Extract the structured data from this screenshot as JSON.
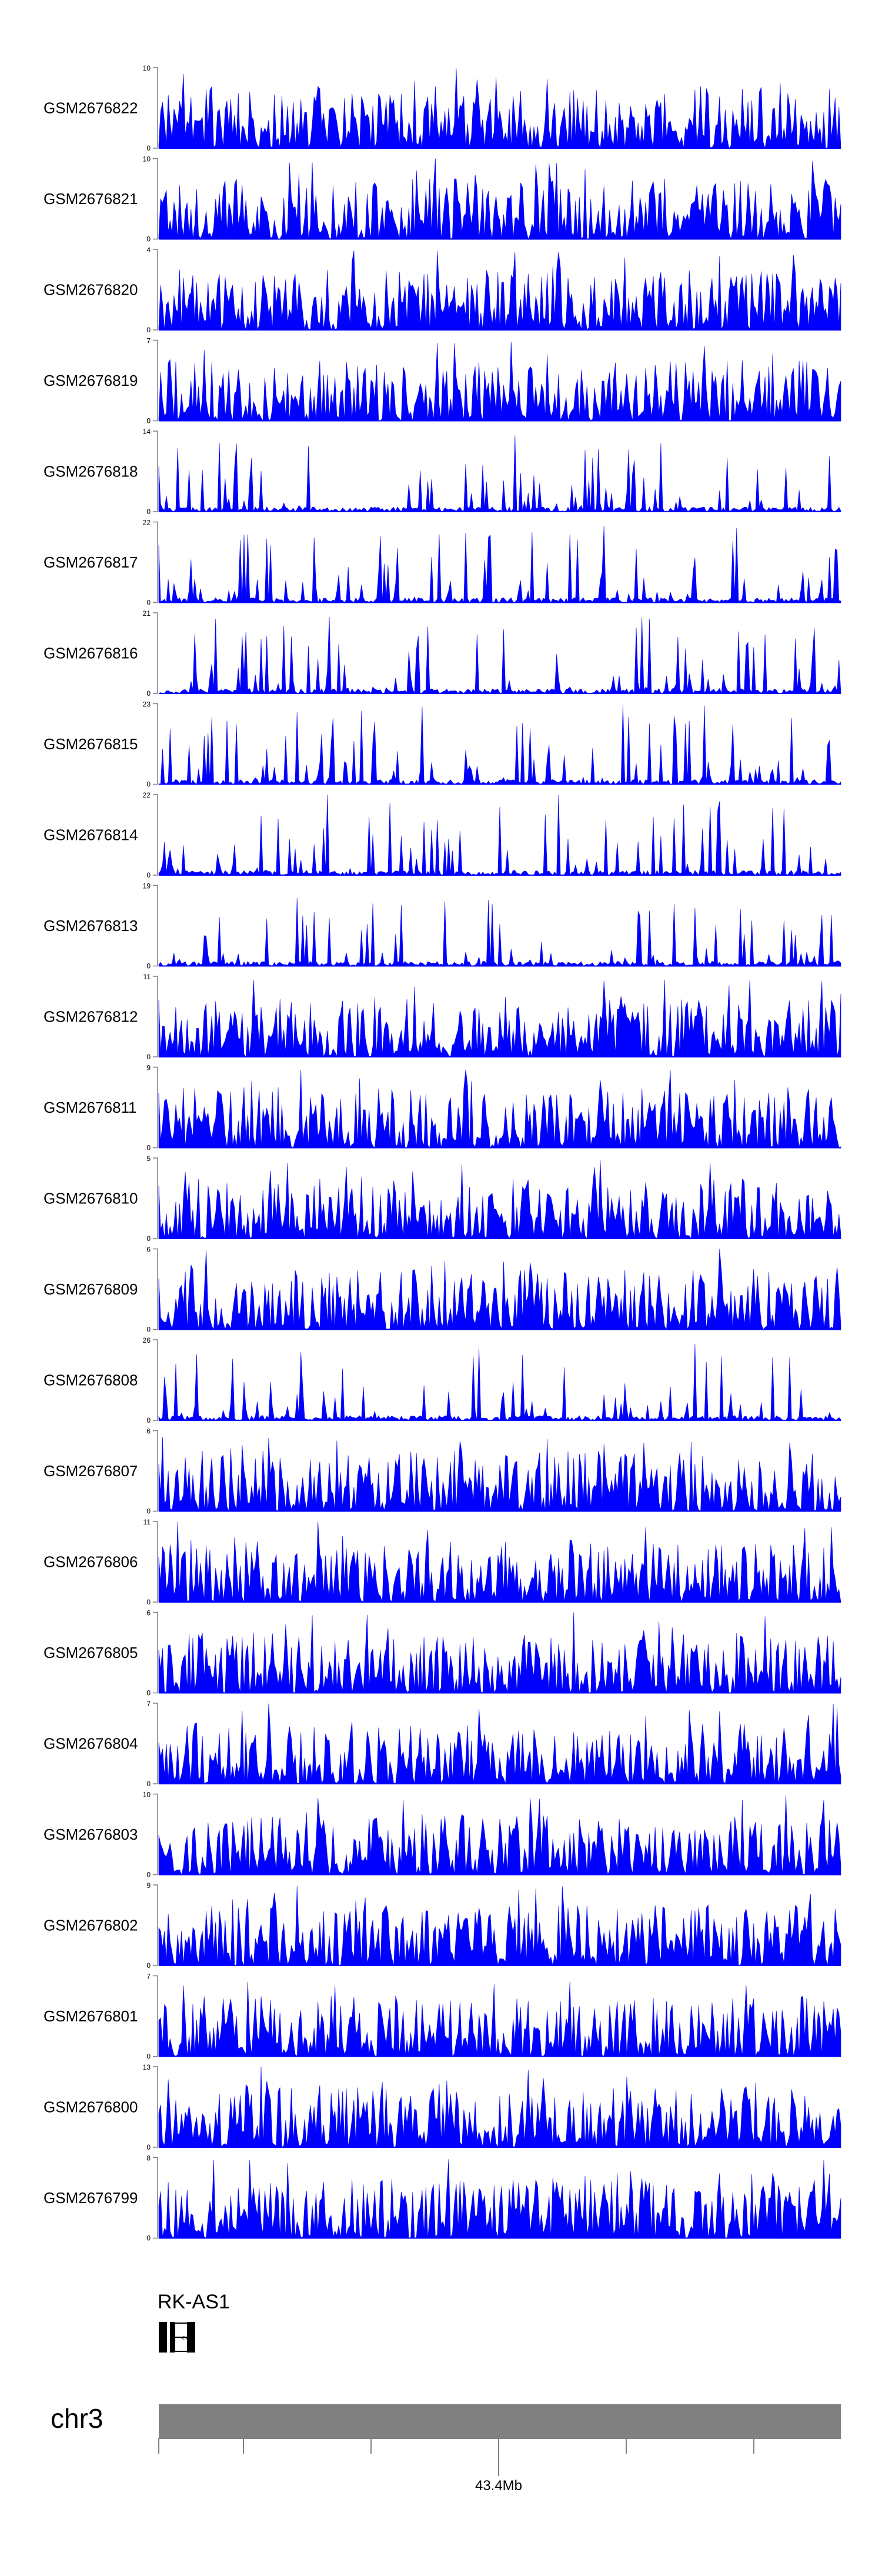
{
  "chart_data": {
    "type": "area",
    "track_color": "#0000ff",
    "chromosome": "chr3",
    "genomic_tick_label": "43.4Mb",
    "gene_label": "RK-AS1",
    "tracks": [
      {
        "label": "GSM2676822",
        "ymax": 10,
        "ymin": 0,
        "seed": 822
      },
      {
        "label": "GSM2676821",
        "ymax": 10,
        "ymin": 0,
        "seed": 821
      },
      {
        "label": "GSM2676820",
        "ymax": 4,
        "ymin": 0,
        "seed": 820
      },
      {
        "label": "GSM2676819",
        "ymax": 7,
        "ymin": 0,
        "seed": 819
      },
      {
        "label": "GSM2676818",
        "ymax": 14,
        "ymin": 0,
        "seed": 818
      },
      {
        "label": "GSM2676817",
        "ymax": 22,
        "ymin": 0,
        "seed": 817
      },
      {
        "label": "GSM2676816",
        "ymax": 21,
        "ymin": 0,
        "seed": 816
      },
      {
        "label": "GSM2676815",
        "ymax": 23,
        "ymin": 0,
        "seed": 815
      },
      {
        "label": "GSM2676814",
        "ymax": 22,
        "ymin": 0,
        "seed": 814
      },
      {
        "label": "GSM2676813",
        "ymax": 19,
        "ymin": 0,
        "seed": 813
      },
      {
        "label": "GSM2676812",
        "ymax": 11,
        "ymin": 0,
        "seed": 812
      },
      {
        "label": "GSM2676811",
        "ymax": 9,
        "ymin": 0,
        "seed": 811
      },
      {
        "label": "GSM2676810",
        "ymax": 5,
        "ymin": 0,
        "seed": 810
      },
      {
        "label": "GSM2676809",
        "ymax": 6,
        "ymin": 0,
        "seed": 809
      },
      {
        "label": "GSM2676808",
        "ymax": 26,
        "ymin": 0,
        "seed": 808
      },
      {
        "label": "GSM2676807",
        "ymax": 6,
        "ymin": 0,
        "seed": 807
      },
      {
        "label": "GSM2676806",
        "ymax": 11,
        "ymin": 0,
        "seed": 806
      },
      {
        "label": "GSM2676805",
        "ymax": 6,
        "ymin": 0,
        "seed": 805
      },
      {
        "label": "GSM2676804",
        "ymax": 7,
        "ymin": 0,
        "seed": 804
      },
      {
        "label": "GSM2676803",
        "ymax": 10,
        "ymin": 0,
        "seed": 803
      },
      {
        "label": "GSM2676802",
        "ymax": 9,
        "ymin": 0,
        "seed": 802
      },
      {
        "label": "GSM2676801",
        "ymax": 7,
        "ymin": 0,
        "seed": 801
      },
      {
        "label": "GSM2676800",
        "ymax": 13,
        "ymin": 0,
        "seed": 800
      },
      {
        "label": "GSM2676799",
        "ymax": 8,
        "ymin": 0,
        "seed": 799
      }
    ]
  }
}
